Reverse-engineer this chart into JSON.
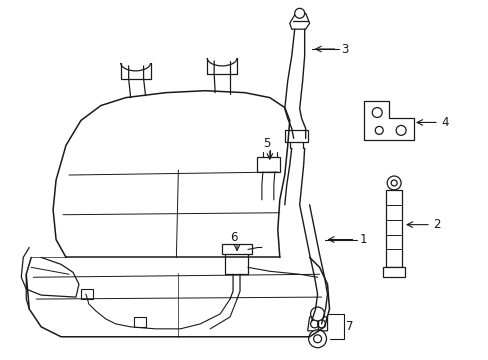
{
  "background_color": "#ffffff",
  "line_color": "#1a1a1a",
  "label_color": "#000000",
  "fig_width": 4.89,
  "fig_height": 3.6,
  "dpi": 100,
  "label_fontsize": 8.5
}
